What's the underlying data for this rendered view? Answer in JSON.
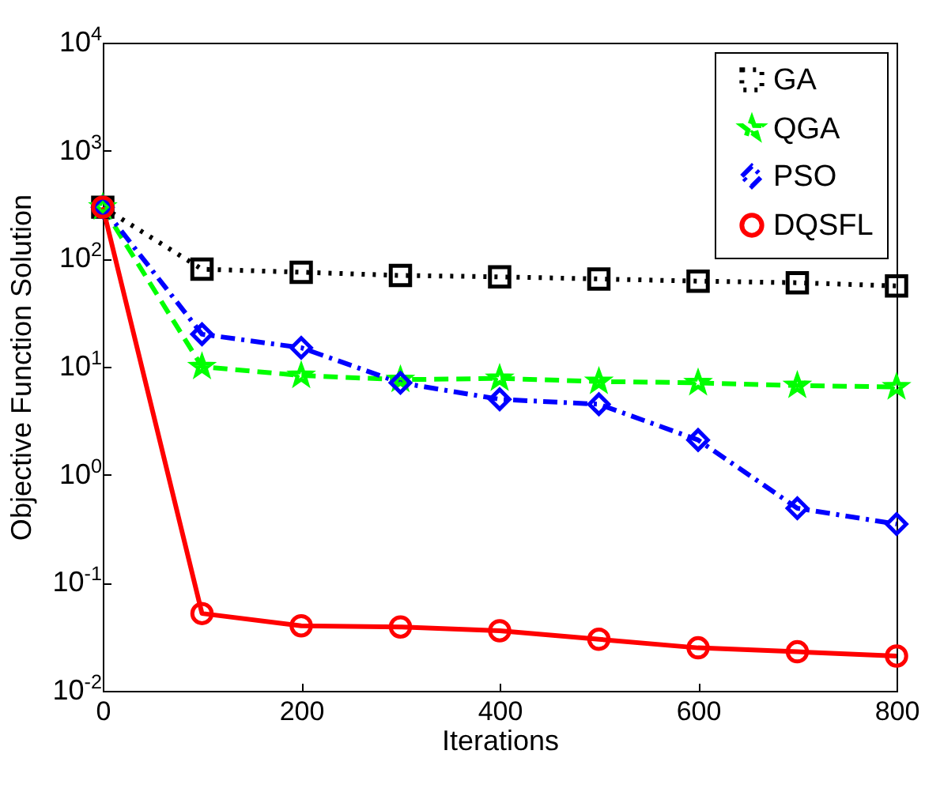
{
  "chart_data": {
    "type": "line",
    "xlabel": "Iterations",
    "ylabel": "Objective Function Solution",
    "x": [
      0,
      100,
      200,
      300,
      400,
      500,
      600,
      700,
      800
    ],
    "xlim": [
      0,
      800
    ],
    "xticks": [
      0,
      200,
      400,
      600,
      800
    ],
    "ylim": [
      0.01,
      10000
    ],
    "log": true,
    "yticks": [
      {
        "value": 0.01,
        "label": "10$^{-2}$"
      },
      {
        "value": 0.1,
        "label": "10$^{-1}$"
      },
      {
        "value": 1,
        "label": "10$^{0}$"
      },
      {
        "value": 10,
        "label": "10$^{1}$"
      },
      {
        "value": 100,
        "label": "10$^{2}$"
      },
      {
        "value": 1000,
        "label": "10$^{3}$"
      },
      {
        "value": 10000,
        "label": "10$^{4}$"
      }
    ],
    "grid": false,
    "legend": "top right",
    "series": [
      {
        "name": "GA",
        "color": "#000000",
        "marker": "square",
        "line_style": "dotted",
        "values": [
          300,
          80,
          75,
          70,
          68,
          65,
          62,
          60,
          56
        ]
      },
      {
        "name": "QGA",
        "color": "#00ff00",
        "marker": "star",
        "line_style": "dashed",
        "values": [
          300,
          10,
          8.3,
          7.6,
          7.8,
          7.3,
          7.1,
          6.7,
          6.5
        ]
      },
      {
        "name": "PSO",
        "color": "#0000ff",
        "marker": "diamond",
        "line_style": "dashdot",
        "values": [
          300,
          20,
          15,
          7.1,
          5,
          4.5,
          2.1,
          0.49,
          0.35
        ]
      },
      {
        "name": "DQSFL",
        "color": "#ff0000",
        "marker": "circle",
        "line_style": "solid",
        "values": [
          300,
          0.052,
          0.04,
          0.039,
          0.036,
          0.03,
          0.025,
          0.023,
          0.021
        ]
      }
    ]
  }
}
